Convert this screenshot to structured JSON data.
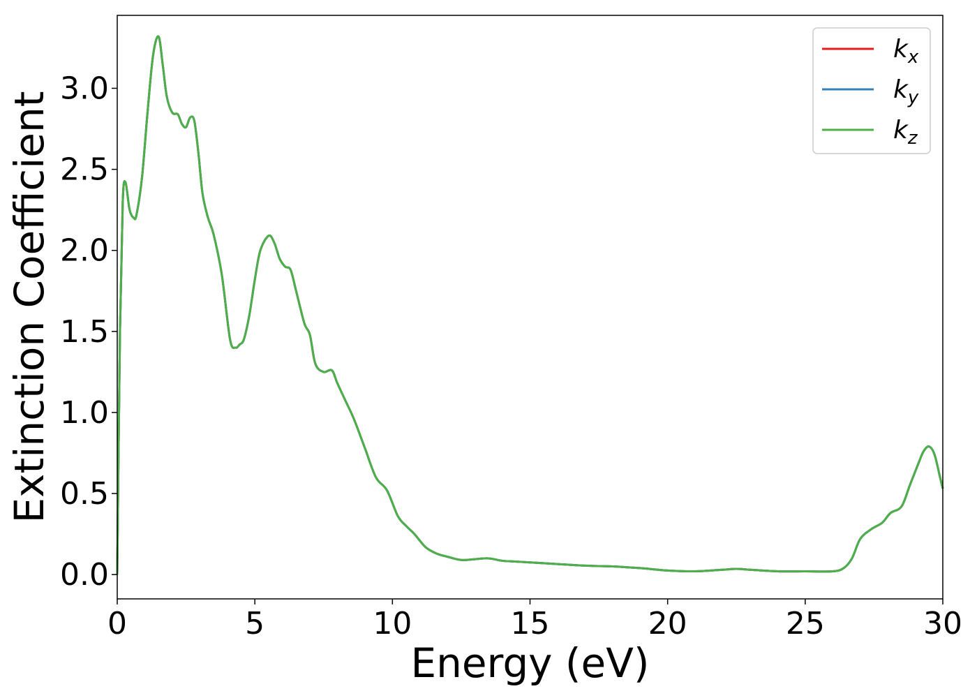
{
  "chart_data": {
    "type": "line",
    "title": "",
    "xlabel": "Energy (eV)",
    "ylabel": "Extinction Coefficient",
    "xlim": [
      0,
      30
    ],
    "ylim": [
      -0.15,
      3.45
    ],
    "xticks": [
      0,
      5,
      10,
      15,
      20,
      25,
      30
    ],
    "xtick_labels": [
      "0",
      "5",
      "10",
      "15",
      "20",
      "25",
      "30"
    ],
    "yticks": [
      0.0,
      0.5,
      1.0,
      1.5,
      2.0,
      2.5,
      3.0
    ],
    "ytick_labels": [
      "0.0",
      "0.5",
      "1.0",
      "1.5",
      "2.0",
      "2.5",
      "3.0"
    ],
    "grid": false,
    "legend_position": "top-right",
    "x": [
      0,
      0.1,
      0.2,
      0.3,
      0.45,
      0.6,
      0.7,
      0.9,
      1.1,
      1.3,
      1.5,
      1.65,
      1.8,
      2.0,
      2.2,
      2.35,
      2.5,
      2.65,
      2.8,
      2.95,
      3.1,
      3.3,
      3.5,
      3.8,
      4.1,
      4.3,
      4.45,
      4.6,
      4.8,
      5.0,
      5.2,
      5.5,
      5.7,
      5.9,
      6.1,
      6.3,
      6.5,
      6.8,
      7.0,
      7.2,
      7.5,
      7.8,
      8.0,
      8.3,
      8.6,
      9.0,
      9.4,
      9.8,
      10.2,
      10.5,
      10.8,
      11.2,
      11.6,
      12.0,
      12.5,
      13.0,
      13.5,
      14.0,
      14.5,
      15.0,
      16.0,
      17.0,
      18.0,
      19.0,
      20.0,
      21.0,
      22.0,
      22.5,
      23.0,
      24.0,
      25.0,
      26.0,
      26.4,
      26.7,
      27.0,
      27.4,
      27.8,
      28.1,
      28.5,
      28.8,
      29.1,
      29.3,
      29.5,
      29.7,
      29.9,
      30.0
    ],
    "series": [
      {
        "name": "k_x",
        "label_base": "k",
        "label_sub": "x",
        "color": "#e41a1c",
        "y": [
          0.0,
          1.5,
          2.3,
          2.42,
          2.25,
          2.2,
          2.22,
          2.45,
          2.85,
          3.2,
          3.32,
          3.15,
          2.95,
          2.85,
          2.84,
          2.78,
          2.76,
          2.82,
          2.8,
          2.6,
          2.35,
          2.2,
          2.1,
          1.85,
          1.45,
          1.4,
          1.42,
          1.45,
          1.6,
          1.82,
          2.0,
          2.09,
          2.05,
          1.95,
          1.9,
          1.88,
          1.75,
          1.55,
          1.48,
          1.3,
          1.25,
          1.26,
          1.18,
          1.07,
          0.96,
          0.78,
          0.6,
          0.52,
          0.36,
          0.3,
          0.25,
          0.17,
          0.13,
          0.11,
          0.09,
          0.095,
          0.1,
          0.085,
          0.08,
          0.075,
          0.065,
          0.055,
          0.05,
          0.04,
          0.025,
          0.02,
          0.03,
          0.035,
          0.03,
          0.02,
          0.02,
          0.02,
          0.04,
          0.1,
          0.22,
          0.28,
          0.32,
          0.38,
          0.42,
          0.55,
          0.68,
          0.76,
          0.79,
          0.74,
          0.6,
          0.53
        ]
      },
      {
        "name": "k_y",
        "label_base": "k",
        "label_sub": "y",
        "color": "#377eb8",
        "y": [
          0.0,
          1.5,
          2.3,
          2.42,
          2.25,
          2.2,
          2.22,
          2.45,
          2.85,
          3.2,
          3.32,
          3.15,
          2.95,
          2.85,
          2.84,
          2.78,
          2.76,
          2.82,
          2.8,
          2.6,
          2.35,
          2.2,
          2.1,
          1.85,
          1.45,
          1.4,
          1.42,
          1.45,
          1.6,
          1.82,
          2.0,
          2.09,
          2.05,
          1.95,
          1.9,
          1.88,
          1.75,
          1.55,
          1.48,
          1.3,
          1.25,
          1.26,
          1.18,
          1.07,
          0.96,
          0.78,
          0.6,
          0.52,
          0.36,
          0.3,
          0.25,
          0.17,
          0.13,
          0.11,
          0.09,
          0.095,
          0.1,
          0.085,
          0.08,
          0.075,
          0.065,
          0.055,
          0.05,
          0.04,
          0.025,
          0.02,
          0.03,
          0.035,
          0.03,
          0.02,
          0.02,
          0.02,
          0.04,
          0.1,
          0.22,
          0.28,
          0.32,
          0.38,
          0.42,
          0.55,
          0.68,
          0.76,
          0.79,
          0.74,
          0.6,
          0.53
        ]
      },
      {
        "name": "k_z",
        "label_base": "k",
        "label_sub": "z",
        "color": "#4daf4a",
        "y": [
          0.0,
          1.5,
          2.3,
          2.42,
          2.25,
          2.2,
          2.22,
          2.45,
          2.85,
          3.2,
          3.32,
          3.15,
          2.95,
          2.85,
          2.84,
          2.78,
          2.76,
          2.82,
          2.8,
          2.6,
          2.35,
          2.2,
          2.1,
          1.85,
          1.45,
          1.4,
          1.42,
          1.45,
          1.6,
          1.82,
          2.0,
          2.09,
          2.05,
          1.95,
          1.9,
          1.88,
          1.75,
          1.55,
          1.48,
          1.3,
          1.25,
          1.26,
          1.18,
          1.07,
          0.96,
          0.78,
          0.6,
          0.52,
          0.36,
          0.3,
          0.25,
          0.17,
          0.13,
          0.11,
          0.09,
          0.095,
          0.1,
          0.085,
          0.08,
          0.075,
          0.065,
          0.055,
          0.05,
          0.04,
          0.025,
          0.02,
          0.03,
          0.035,
          0.03,
          0.02,
          0.02,
          0.02,
          0.04,
          0.1,
          0.22,
          0.28,
          0.32,
          0.38,
          0.42,
          0.55,
          0.68,
          0.76,
          0.79,
          0.74,
          0.6,
          0.53
        ]
      }
    ]
  }
}
